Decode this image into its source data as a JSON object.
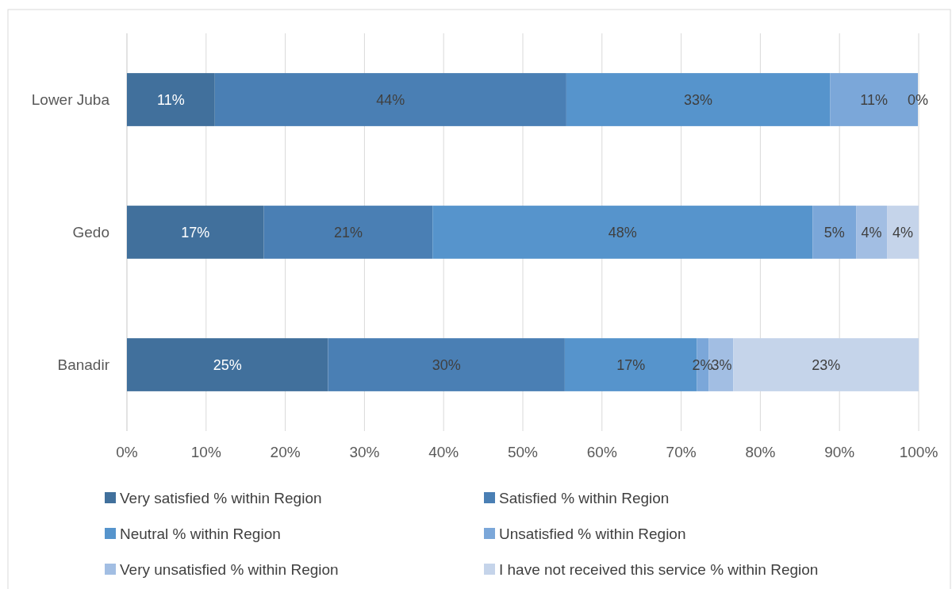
{
  "chart_data": {
    "type": "bar",
    "orientation": "horizontal",
    "stacked": true,
    "categories": [
      "Lower Juba",
      "Gedo",
      "Banadir"
    ],
    "series": [
      {
        "name": "Very satisfied % within Region",
        "color": "#41709c",
        "values": [
          11.1,
          17.3,
          25.4
        ],
        "value_labels": [
          "11%",
          "17%",
          "25%"
        ]
      },
      {
        "name": "Satisfied % within Region",
        "color": "#4a7fb4",
        "values": [
          44.4,
          21.3,
          29.9
        ],
        "value_labels": [
          "44%",
          "21%",
          "30%"
        ]
      },
      {
        "name": "Neutral % within Region",
        "color": "#5694cc",
        "values": [
          33.3,
          48.0,
          16.7
        ],
        "value_labels": [
          "33%",
          "48%",
          "17%"
        ]
      },
      {
        "name": "Unsatisfied % within Region",
        "color": "#7ba7d9",
        "values": [
          11.1,
          5.5,
          1.5
        ],
        "value_labels": [
          "11%",
          "5%",
          "2%"
        ]
      },
      {
        "name": "Very unsatisfied % within Region",
        "color": "#a2bee3",
        "values": [
          0,
          3.9,
          3.1
        ],
        "value_labels": [
          "0%",
          "4%",
          "3%"
        ]
      },
      {
        "name": "I have not received this service % within Region",
        "color": "#c5d4ea",
        "values": [
          0,
          4.0,
          23.4
        ],
        "value_labels": [
          null,
          "4%",
          "23%"
        ]
      }
    ],
    "xlim": [
      0,
      100
    ],
    "xticks": [
      {
        "value": 0,
        "label": "0%"
      },
      {
        "value": 10,
        "label": "10%"
      },
      {
        "value": 20,
        "label": "20%"
      },
      {
        "value": 30,
        "label": "30%"
      },
      {
        "value": 40,
        "label": "40%"
      },
      {
        "value": 50,
        "label": "50%"
      },
      {
        "value": 60,
        "label": "60%"
      },
      {
        "value": 70,
        "label": "70%"
      },
      {
        "value": 80,
        "label": "80%"
      },
      {
        "value": 90,
        "label": "90%"
      },
      {
        "value": 100,
        "label": "100%"
      }
    ],
    "grid": "x",
    "legend": "bottom"
  }
}
